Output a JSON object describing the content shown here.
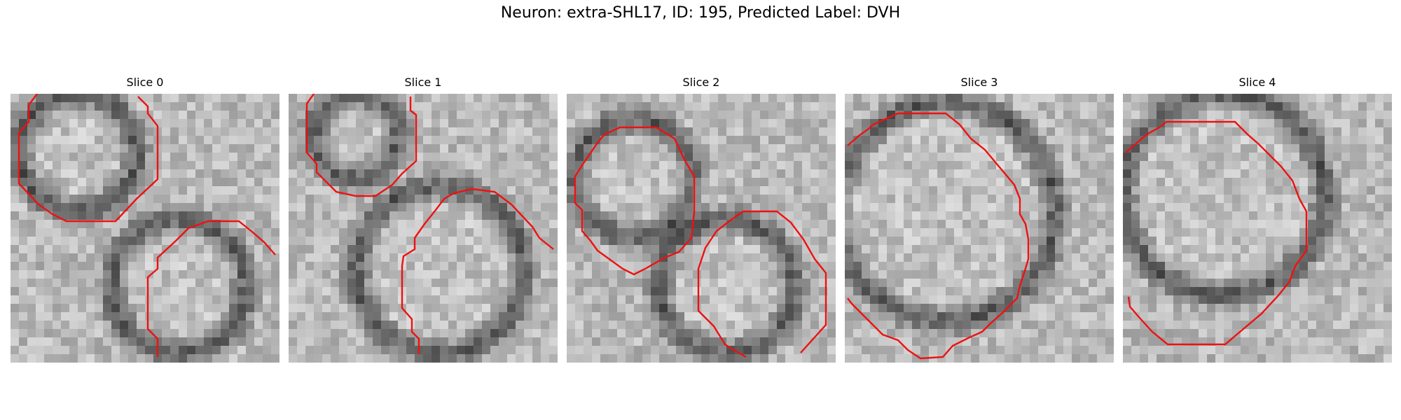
{
  "figure": {
    "suptitle": "Neuron: extra-SHL17, ID: 195, Predicted Label: DVH",
    "panels": [
      {
        "title": "Slice 0"
      },
      {
        "title": "Slice 1"
      },
      {
        "title": "Slice 2"
      },
      {
        "title": "Slice 3"
      },
      {
        "title": "Slice 4"
      }
    ]
  },
  "colors": {
    "outline": "#ee1111"
  }
}
